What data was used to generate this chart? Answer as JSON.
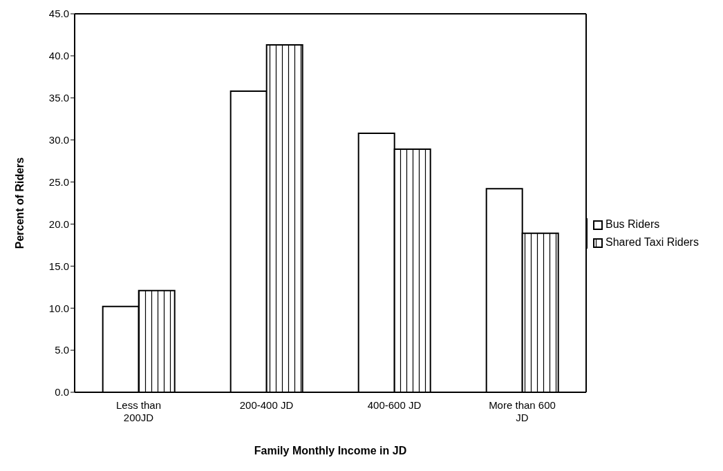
{
  "chart_data": {
    "type": "bar",
    "xlabel": "Family Monthly Income in JD",
    "ylabel": "Percent of Riders",
    "categories": [
      "Less than 200JD",
      "200-400 JD",
      "400-600 JD",
      "More than 600 JD"
    ],
    "series": [
      {
        "name": "Bus Riders",
        "color": "#ffffff",
        "values": [
          10.2,
          35.8,
          30.8,
          24.2
        ]
      },
      {
        "name": "Shared Taxi Riders",
        "color": "#000000",
        "values": [
          12.1,
          41.3,
          28.9,
          18.9
        ]
      }
    ],
    "ylim": [
      0,
      45
    ],
    "yticks": [
      {
        "value": 0,
        "label": "0.0"
      },
      {
        "value": 5,
        "label": "5.0"
      },
      {
        "value": 10,
        "label": "10.0"
      },
      {
        "value": 15,
        "label": "15.0"
      },
      {
        "value": 20,
        "label": "20.0"
      },
      {
        "value": 25,
        "label": "25.0"
      },
      {
        "value": 30,
        "label": "30.0"
      },
      {
        "value": 35,
        "label": "35.0"
      },
      {
        "value": 40,
        "label": "40.0"
      },
      {
        "value": 45,
        "label": "45.0"
      }
    ],
    "grid": false,
    "legend": "right"
  }
}
